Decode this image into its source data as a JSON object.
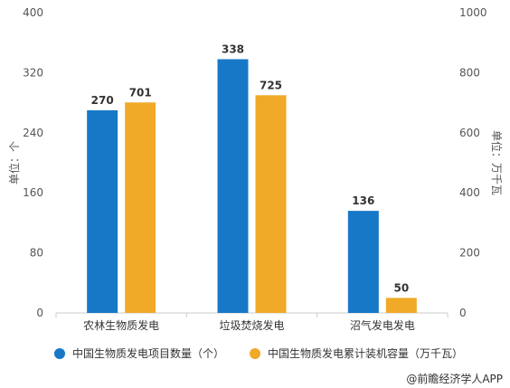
{
  "chart_data": {
    "type": "bar",
    "categories": [
      "农林生物质发电",
      "垃圾焚烧发电",
      "沼气发电发电"
    ],
    "series": [
      {
        "name": "中国生物质发电项目数量（个）",
        "values": [
          270,
          338,
          136
        ],
        "axis": "left",
        "color": "#1878c8"
      },
      {
        "name": "中国生物质发电累计装机容量（万千瓦）",
        "values": [
          701,
          725,
          50
        ],
        "axis": "right",
        "color": "#f0aa28"
      }
    ],
    "ylabel_left": "单位：个",
    "ylabel_right": "单位：万千瓦",
    "ylim_left": [
      0,
      400
    ],
    "ylim_right": [
      0,
      1000
    ],
    "yticks_left": [
      0,
      80,
      160,
      240,
      320,
      400
    ],
    "yticks_right": [
      0,
      200,
      400,
      600,
      800,
      1000
    ],
    "legend_position": "bottom-left",
    "grid": false
  },
  "watermark": "@前瞻经济学人APP"
}
